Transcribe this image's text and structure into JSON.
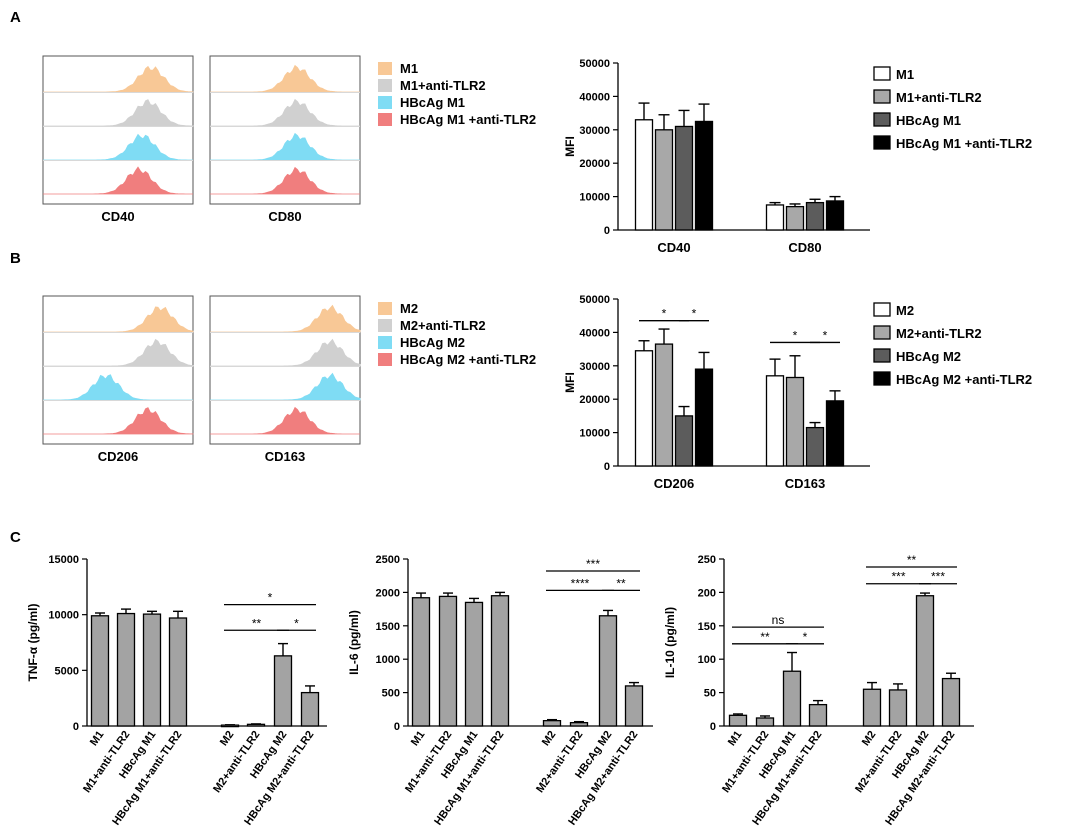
{
  "colors": {
    "m_orange": "#f8c896",
    "m_gray": "#d0d0d0",
    "m_cyan": "#7fdcf4",
    "m_red": "#f07e7e",
    "bar_white": "#ffffff",
    "bar_lgray": "#a8a8a8",
    "bar_dgray": "#5c5c5c",
    "bar_black": "#000000",
    "bar_c": "#a3a3a3"
  },
  "panel_labels": {
    "a": "A",
    "b": "B",
    "c": "C"
  },
  "flow_a": {
    "plot_labels": [
      "CD40",
      "CD80"
    ],
    "legend": [
      "M1",
      "M1+anti-TLR2",
      "HBcAg M1",
      "HBcAg M1 +anti-TLR2"
    ],
    "curve_peaks": [
      [
        0.72,
        0.7,
        0.66,
        0.64
      ],
      [
        0.58,
        0.58,
        0.58,
        0.58
      ]
    ]
  },
  "flow_b": {
    "plot_labels": [
      "CD206",
      "CD163"
    ],
    "legend": [
      "M2",
      "M2+anti-TLR2",
      "HBcAg M2",
      "HBcAg M2 +anti-TLR2"
    ],
    "curve_peaks": [
      [
        0.78,
        0.76,
        0.42,
        0.7
      ],
      [
        0.8,
        0.8,
        0.8,
        0.58
      ]
    ]
  },
  "chart_data": [
    {
      "id": "mfi_a",
      "type": "bar",
      "ylabel": "MFI",
      "ylim": [
        0,
        50000
      ],
      "yticks": [
        0,
        10000,
        20000,
        30000,
        40000,
        50000
      ],
      "groups": [
        "CD40",
        "CD80"
      ],
      "legend": [
        "M1",
        "M1+anti-TLR2",
        "HBcAg M1",
        "HBcAg M1 +anti-TLR2"
      ],
      "series": [
        {
          "name": "M1",
          "values": [
            33000,
            7500
          ],
          "errors": [
            5000,
            700
          ]
        },
        {
          "name": "M1+anti-TLR2",
          "values": [
            30000,
            7000
          ],
          "errors": [
            4500,
            800
          ]
        },
        {
          "name": "HBcAg M1",
          "values": [
            31000,
            8200
          ],
          "errors": [
            4800,
            1000
          ]
        },
        {
          "name": "HBcAg M1 +anti-TLR2",
          "values": [
            32500,
            8700
          ],
          "errors": [
            5200,
            1300
          ]
        }
      ],
      "significance": []
    },
    {
      "id": "mfi_b",
      "type": "bar",
      "ylabel": "MFI",
      "ylim": [
        0,
        50000
      ],
      "yticks": [
        0,
        10000,
        20000,
        30000,
        40000,
        50000
      ],
      "groups": [
        "CD206",
        "CD163"
      ],
      "legend": [
        "M2",
        "M2+anti-TLR2",
        "HBcAg M2",
        "HBcAg M2 +anti-TLR2"
      ],
      "series": [
        {
          "name": "M2",
          "values": [
            34500,
            27000
          ],
          "errors": [
            3000,
            5000
          ]
        },
        {
          "name": "M2+anti-TLR2",
          "values": [
            36500,
            26500
          ],
          "errors": [
            4500,
            6500
          ]
        },
        {
          "name": "HBcAg M2",
          "values": [
            15000,
            11500
          ],
          "errors": [
            2800,
            1500
          ]
        },
        {
          "name": "HBcAg M2 +anti-TLR2",
          "values": [
            29000,
            19500
          ],
          "errors": [
            5000,
            3000
          ]
        }
      ],
      "significance": [
        {
          "group": 0,
          "from": 0,
          "to": 2,
          "label": "*",
          "y": 43500
        },
        {
          "group": 0,
          "from": 2,
          "to": 3,
          "label": "*",
          "y": 43500
        },
        {
          "group": 1,
          "from": 0,
          "to": 2,
          "label": "*",
          "y": 37000
        },
        {
          "group": 1,
          "from": 2,
          "to": 3,
          "label": "*",
          "y": 37000
        }
      ]
    },
    {
      "id": "tnf",
      "type": "bar",
      "ylabel": "TNF-α (pg/ml)",
      "ylim": [
        0,
        15000
      ],
      "yticks": [
        0,
        5000,
        10000,
        15000
      ],
      "categories": [
        "M1",
        "M1+anti-TLR2",
        "HBcAg M1",
        "HBcAg M1+anti-TLR2",
        "M2",
        "M2+anti-TLR2",
        "HBcAg M2",
        "HBcAg M2+anti-TLR2"
      ],
      "values": [
        9900,
        10100,
        10050,
        9700,
        80,
        150,
        6300,
        3000
      ],
      "errors": [
        250,
        400,
        250,
        600,
        30,
        40,
        1100,
        600
      ],
      "significance": [
        {
          "from": 4,
          "to": 6,
          "label": "**",
          "y": 8600
        },
        {
          "from": 6,
          "to": 7,
          "label": "*",
          "y": 8600
        },
        {
          "from": 4,
          "to": 7,
          "label": "*",
          "y": 10900
        }
      ]
    },
    {
      "id": "il6",
      "type": "bar",
      "ylabel": "IL-6 (pg/ml)",
      "ylim": [
        0,
        2500
      ],
      "yticks": [
        0,
        500,
        1000,
        1500,
        2000,
        2500
      ],
      "categories": [
        "M1",
        "M1+anti-TLR2",
        "HBcAg M1",
        "HBcAg M1+anti-TLR2",
        "M2",
        "M2+anti-TLR2",
        "HBcAg M2",
        "HBcAg M2+anti-TLR2"
      ],
      "values": [
        1920,
        1940,
        1850,
        1950,
        80,
        50,
        1650,
        600
      ],
      "errors": [
        70,
        50,
        60,
        50,
        15,
        15,
        80,
        50
      ],
      "significance": [
        {
          "from": 4,
          "to": 6,
          "label": "****",
          "y": 2030
        },
        {
          "from": 6,
          "to": 7,
          "label": "**",
          "y": 2030
        },
        {
          "from": 4,
          "to": 7,
          "label": "***",
          "y": 2320
        }
      ]
    },
    {
      "id": "il10",
      "type": "bar",
      "ylabel": "IL-10 (pg/ml)",
      "ylim": [
        0,
        250
      ],
      "yticks": [
        0,
        50,
        100,
        150,
        200,
        250
      ],
      "categories": [
        "M1",
        "M1+anti-TLR2",
        "HBcAg M1",
        "HBcAg M1+anti-TLR2",
        "M2",
        "M2+anti-TLR2",
        "HBcAg M2",
        "HBcAg M2+anti-TLR2"
      ],
      "values": [
        16,
        12,
        82,
        32,
        55,
        54,
        195,
        71
      ],
      "errors": [
        2,
        3,
        28,
        6,
        10,
        9,
        4,
        8
      ],
      "significance": [
        {
          "from": 0,
          "to": 2,
          "label": "**",
          "y": 123
        },
        {
          "from": 2,
          "to": 3,
          "label": "*",
          "y": 123
        },
        {
          "from": 0,
          "to": 3,
          "label": "ns",
          "y": 148
        },
        {
          "from": 4,
          "to": 6,
          "label": "***",
          "y": 213
        },
        {
          "from": 6,
          "to": 7,
          "label": "***",
          "y": 213
        },
        {
          "from": 4,
          "to": 7,
          "label": "**",
          "y": 238
        }
      ]
    }
  ]
}
